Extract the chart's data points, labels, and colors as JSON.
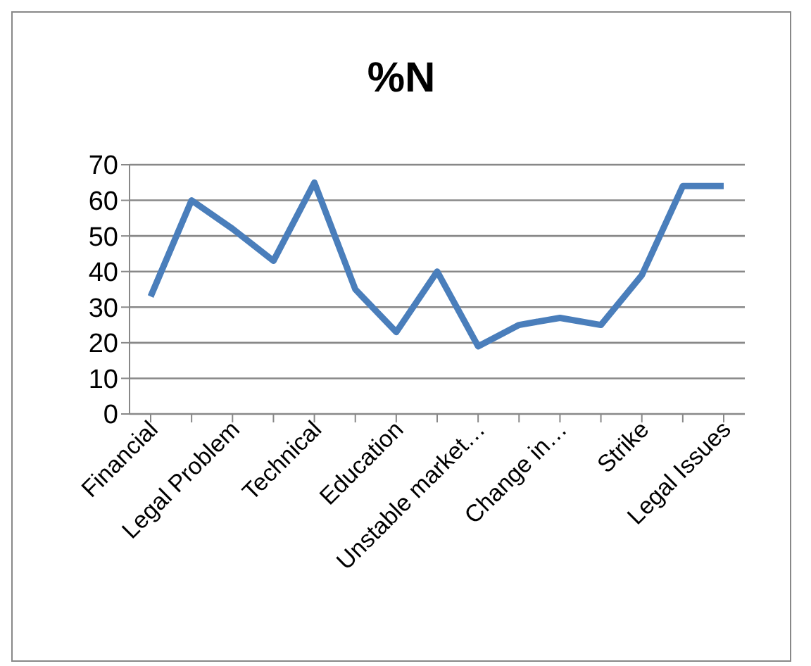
{
  "chart_data": {
    "type": "line",
    "title": "%N",
    "categories": [
      "Financial",
      null,
      "Legal Problem",
      null,
      "Technical",
      null,
      "Education",
      null,
      "Unstable market…",
      null,
      "Change in…",
      null,
      "Strike",
      null,
      "Legal Issues"
    ],
    "series": [
      {
        "color": "#4a7ebb",
        "values": [
          33,
          60,
          52,
          43,
          65,
          35,
          23,
          40,
          19,
          25,
          27,
          25,
          39,
          64,
          64
        ]
      }
    ],
    "ylim": [
      0,
      70
    ],
    "yticks": [
      0,
      10,
      20,
      30,
      40,
      50,
      60,
      70
    ],
    "grid": "y",
    "legend": false,
    "marker": "none",
    "line_style": "solid"
  }
}
